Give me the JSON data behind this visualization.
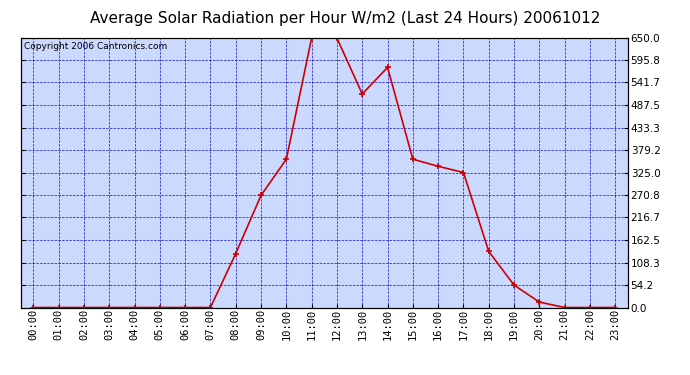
{
  "title": "Average Solar Radiation per Hour W/m2 (Last 24 Hours) 20061012",
  "copyright": "Copyright 2006 Cantronics.com",
  "hours": [
    "00:00",
    "01:00",
    "02:00",
    "03:00",
    "04:00",
    "05:00",
    "06:00",
    "07:00",
    "08:00",
    "09:00",
    "10:00",
    "11:00",
    "12:00",
    "13:00",
    "14:00",
    "15:00",
    "16:00",
    "17:00",
    "18:00",
    "19:00",
    "20:00",
    "21:00",
    "22:00",
    "23:00"
  ],
  "values": [
    0.0,
    0.0,
    0.0,
    0.0,
    0.0,
    0.0,
    0.0,
    0.0,
    130.0,
    270.0,
    357.0,
    649.0,
    648.5,
    514.0,
    578.0,
    357.0,
    340.0,
    325.0,
    135.0,
    54.0,
    13.0,
    0.0,
    0.0,
    0.0
  ],
  "line_color": "#cc0000",
  "marker_color": "#cc0000",
  "bg_color": "#ccd9ff",
  "grid_color": "#0000bb",
  "text_color": "#000000",
  "ymax": 650.0,
  "ymin": 0.0,
  "yticks": [
    0.0,
    54.2,
    108.3,
    162.5,
    216.7,
    270.8,
    325.0,
    379.2,
    433.3,
    487.5,
    541.7,
    595.8,
    650.0
  ],
  "ytick_labels": [
    "0.0",
    "54.2",
    "108.3",
    "162.5",
    "216.7",
    "270.8",
    "325.0",
    "379.2",
    "433.3",
    "487.5",
    "541.7",
    "595.8",
    "650.0"
  ],
  "title_fontsize": 11,
  "axis_fontsize": 7.5,
  "copyright_fontsize": 6.5
}
